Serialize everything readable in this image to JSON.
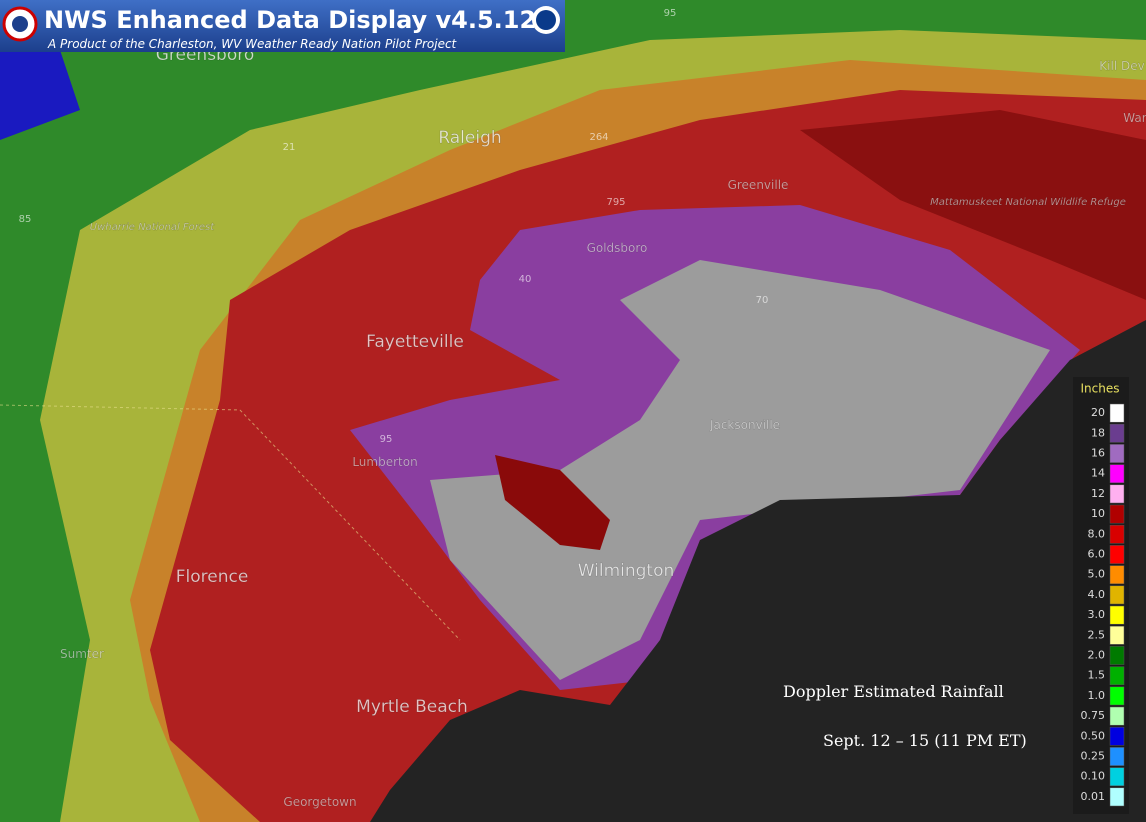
{
  "header": {
    "title": "NWS Enhanced Data Display v4.5.12",
    "subtitle": "A Product of the Charleston, WV Weather Ready Nation Pilot Project"
  },
  "places": [
    "Greensboro",
    "Raleigh",
    "Greenville",
    "Goldsboro",
    "Fayetteville",
    "Jacksonville",
    "Lumberton",
    "Wilmington",
    "Florence",
    "Sumter",
    "Myrtle Beach",
    "Georgetown",
    "Uwharrie National Forest",
    "Mattamuskeet National Wildlife Refuge",
    "Kill Dev",
    "War"
  ],
  "routes": [
    "85",
    "40",
    "95",
    "264",
    "795",
    "70",
    "21",
    "95"
  ],
  "legend": {
    "title": "Inches",
    "items": [
      {
        "label": "20",
        "color": "#ffffff"
      },
      {
        "label": "18",
        "color": "#6a3d8f"
      },
      {
        "label": "16",
        "color": "#a06bc0"
      },
      {
        "label": "14",
        "color": "#ff00ff"
      },
      {
        "label": "12",
        "color": "#ffb0f0"
      },
      {
        "label": "10",
        "color": "#b00000"
      },
      {
        "label": "8.0",
        "color": "#d80000"
      },
      {
        "label": "6.0",
        "color": "#ff0000"
      },
      {
        "label": "5.0",
        "color": "#ff8c00"
      },
      {
        "label": "4.0",
        "color": "#e0b400"
      },
      {
        "label": "3.0",
        "color": "#ffff00"
      },
      {
        "label": "2.5",
        "color": "#ffff99"
      },
      {
        "label": "2.0",
        "color": "#007a00"
      },
      {
        "label": "1.5",
        "color": "#00b000"
      },
      {
        "label": "1.0",
        "color": "#00ff00"
      },
      {
        "label": "0.75",
        "color": "#b0ffb0"
      },
      {
        "label": "0.50",
        "color": "#0000e0"
      },
      {
        "label": "0.25",
        "color": "#1e90ff"
      },
      {
        "label": "0.10",
        "color": "#00d0e0"
      },
      {
        "label": "0.01",
        "color": "#b0ffff"
      }
    ]
  },
  "caption": {
    "title": "Doppler Estimated Rainfall",
    "dates": "Sept. 12 – 15 (11 PM ET)"
  }
}
